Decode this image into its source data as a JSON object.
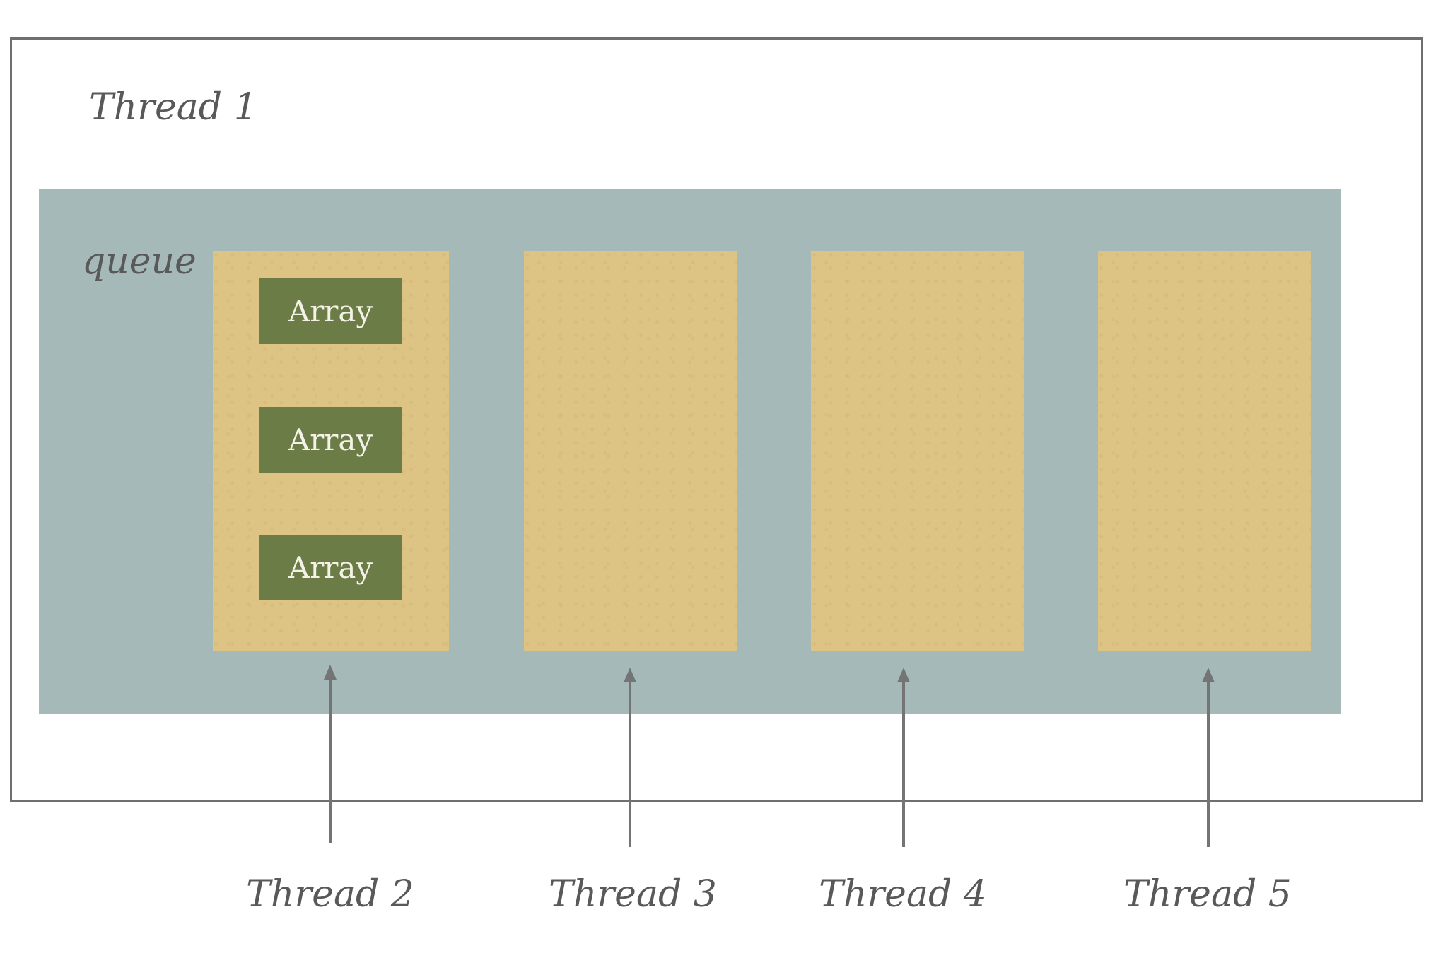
{
  "diagram": {
    "outer_label": "Thread 1",
    "queue_label": "queue",
    "queue_slots": [
      {
        "items": [
          "Array",
          "Array",
          "Array"
        ]
      },
      {
        "items": []
      },
      {
        "items": []
      },
      {
        "items": []
      }
    ],
    "threads": [
      "Thread 2",
      "Thread 3",
      "Thread 4",
      "Thread 5"
    ],
    "colors": {
      "outer_border": "#6f6f6f",
      "queue_background": "#a5b9b8",
      "slot_background": "#ddc384",
      "array_background": "#6b7c46",
      "arrow": "#747474",
      "label_text": "#595959"
    }
  }
}
